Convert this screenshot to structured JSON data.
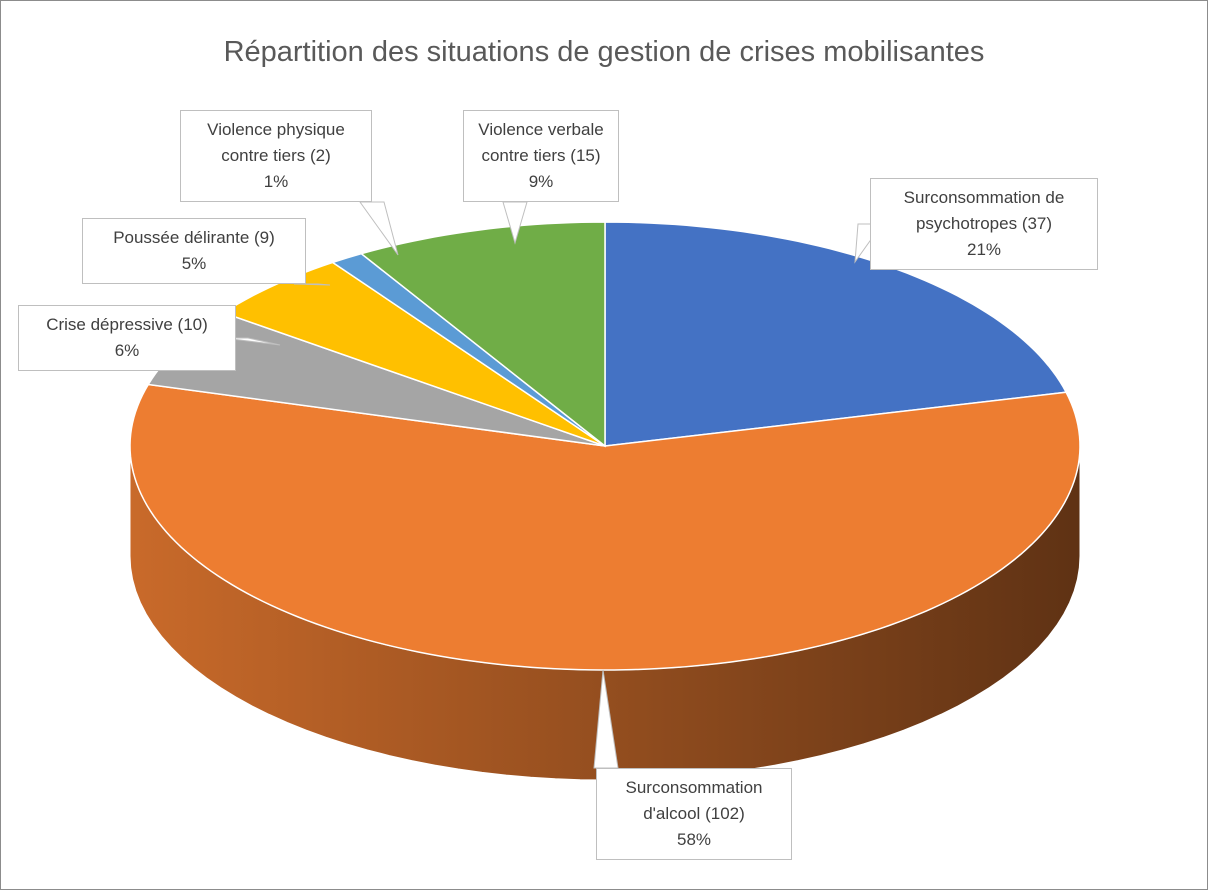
{
  "chart_data": {
    "type": "pie",
    "title": "Répartition des situations de gestion de crises mobilisantes",
    "categories": [
      "Surconsommation de psychotropes",
      "Surconsommation d'alcool",
      "Crise dépressive",
      "Poussée délirante",
      "Violence physique contre tiers",
      "Violence verbale contre tiers"
    ],
    "values": [
      37,
      102,
      10,
      9,
      2,
      15
    ],
    "value_labels": [
      "(37)",
      "(102)",
      "(10)",
      "(9)",
      "(2)",
      "(15)"
    ],
    "percent_labels": [
      "21%",
      "58%",
      "6%",
      "5%",
      "1%",
      "9%"
    ],
    "colors": [
      "#4472c4",
      "#ed7d31",
      "#a5a5a5",
      "#ffc000",
      "#5b9bd5",
      "#70ad47"
    ],
    "three_d": true
  }
}
